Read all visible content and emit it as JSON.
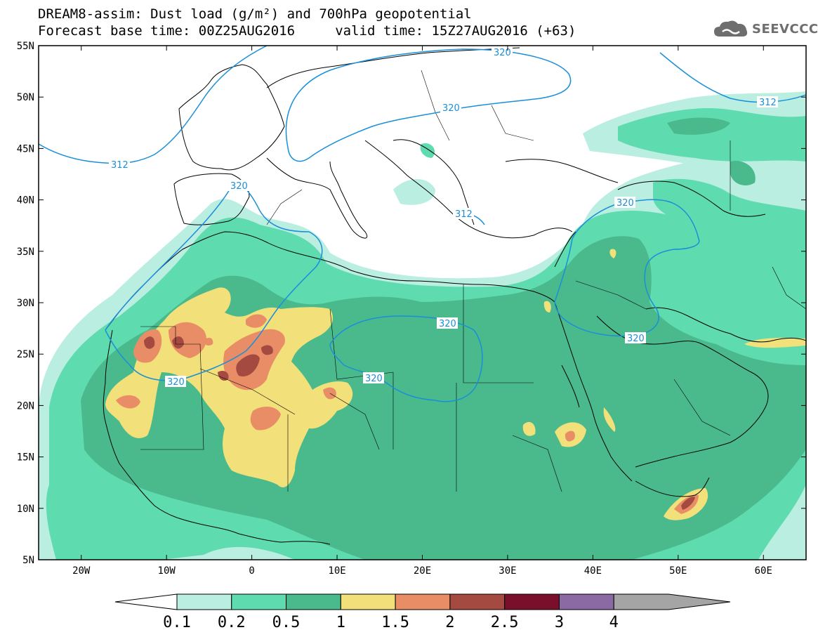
{
  "title": {
    "line1": "DREAM8-assim: Dust load (g/m²) and 700hPa geopotential",
    "line2": "Forecast base time: 00Z25AUG2016     valid time: 15Z27AUG2016 (+63)"
  },
  "logo": {
    "text": "SEEVCCC",
    "icon": "cloud-logo-icon"
  },
  "map": {
    "lon_range": [
      -25,
      65
    ],
    "lat_range": [
      5,
      55
    ],
    "x_ticks": [
      {
        "value": -20,
        "label": "20W"
      },
      {
        "value": -10,
        "label": "10W"
      },
      {
        "value": 0,
        "label": "0"
      },
      {
        "value": 10,
        "label": "10E"
      },
      {
        "value": 20,
        "label": "20E"
      },
      {
        "value": 30,
        "label": "30E"
      },
      {
        "value": 40,
        "label": "40E"
      },
      {
        "value": 50,
        "label": "50E"
      },
      {
        "value": 60,
        "label": "60E"
      }
    ],
    "y_ticks": [
      {
        "value": 55,
        "label": "55N"
      },
      {
        "value": 50,
        "label": "50N"
      },
      {
        "value": 45,
        "label": "45N"
      },
      {
        "value": 40,
        "label": "40N"
      },
      {
        "value": 35,
        "label": "35N"
      },
      {
        "value": 30,
        "label": "30N"
      },
      {
        "value": 25,
        "label": "25N"
      },
      {
        "value": 20,
        "label": "20N"
      },
      {
        "value": 15,
        "label": "15N"
      },
      {
        "value": 10,
        "label": "10N"
      },
      {
        "value": 5,
        "label": "5N"
      }
    ],
    "geopotential_labels": [
      "320",
      "320",
      "312",
      "320",
      "320",
      "312",
      "312",
      "320",
      "320",
      "320",
      "320"
    ],
    "contour_color": "#1a8fd9"
  },
  "colorbar": {
    "labels": [
      "0.1",
      "0.2",
      "0.5",
      "1",
      "1.5",
      "2",
      "2.5",
      "3",
      "4"
    ],
    "colors": [
      "#b9eee0",
      "#5fdbb0",
      "#4aba8c",
      "#f2e07a",
      "#e98d66",
      "#a54a40",
      "#7a0f2c",
      "#8b6aa3",
      "#a5a5a5"
    ],
    "under_color": "#ffffff"
  }
}
